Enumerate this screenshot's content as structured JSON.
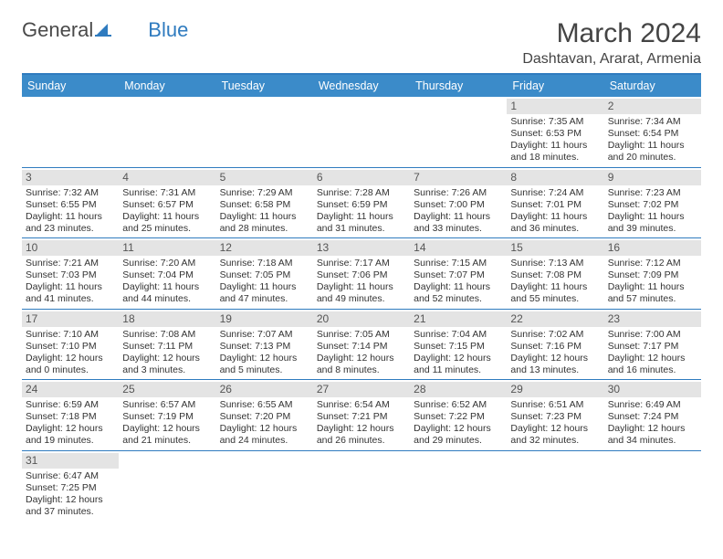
{
  "logo": {
    "text1": "General",
    "text2": "Blue",
    "accent_color": "#2f7bbf"
  },
  "title": "March 2024",
  "location": "Dashtavan, Ararat, Armenia",
  "weekdays": [
    "Sunday",
    "Monday",
    "Tuesday",
    "Wednesday",
    "Thursday",
    "Friday",
    "Saturday"
  ],
  "header_bg": "#3b8bc9",
  "daynum_bg": "#e4e4e4",
  "border_color": "#2f7bbf",
  "weeks": [
    [
      null,
      null,
      null,
      null,
      null,
      {
        "n": "1",
        "sr": "Sunrise: 7:35 AM",
        "ss": "Sunset: 6:53 PM",
        "dl": "Daylight: 11 hours and 18 minutes."
      },
      {
        "n": "2",
        "sr": "Sunrise: 7:34 AM",
        "ss": "Sunset: 6:54 PM",
        "dl": "Daylight: 11 hours and 20 minutes."
      }
    ],
    [
      {
        "n": "3",
        "sr": "Sunrise: 7:32 AM",
        "ss": "Sunset: 6:55 PM",
        "dl": "Daylight: 11 hours and 23 minutes."
      },
      {
        "n": "4",
        "sr": "Sunrise: 7:31 AM",
        "ss": "Sunset: 6:57 PM",
        "dl": "Daylight: 11 hours and 25 minutes."
      },
      {
        "n": "5",
        "sr": "Sunrise: 7:29 AM",
        "ss": "Sunset: 6:58 PM",
        "dl": "Daylight: 11 hours and 28 minutes."
      },
      {
        "n": "6",
        "sr": "Sunrise: 7:28 AM",
        "ss": "Sunset: 6:59 PM",
        "dl": "Daylight: 11 hours and 31 minutes."
      },
      {
        "n": "7",
        "sr": "Sunrise: 7:26 AM",
        "ss": "Sunset: 7:00 PM",
        "dl": "Daylight: 11 hours and 33 minutes."
      },
      {
        "n": "8",
        "sr": "Sunrise: 7:24 AM",
        "ss": "Sunset: 7:01 PM",
        "dl": "Daylight: 11 hours and 36 minutes."
      },
      {
        "n": "9",
        "sr": "Sunrise: 7:23 AM",
        "ss": "Sunset: 7:02 PM",
        "dl": "Daylight: 11 hours and 39 minutes."
      }
    ],
    [
      {
        "n": "10",
        "sr": "Sunrise: 7:21 AM",
        "ss": "Sunset: 7:03 PM",
        "dl": "Daylight: 11 hours and 41 minutes."
      },
      {
        "n": "11",
        "sr": "Sunrise: 7:20 AM",
        "ss": "Sunset: 7:04 PM",
        "dl": "Daylight: 11 hours and 44 minutes."
      },
      {
        "n": "12",
        "sr": "Sunrise: 7:18 AM",
        "ss": "Sunset: 7:05 PM",
        "dl": "Daylight: 11 hours and 47 minutes."
      },
      {
        "n": "13",
        "sr": "Sunrise: 7:17 AM",
        "ss": "Sunset: 7:06 PM",
        "dl": "Daylight: 11 hours and 49 minutes."
      },
      {
        "n": "14",
        "sr": "Sunrise: 7:15 AM",
        "ss": "Sunset: 7:07 PM",
        "dl": "Daylight: 11 hours and 52 minutes."
      },
      {
        "n": "15",
        "sr": "Sunrise: 7:13 AM",
        "ss": "Sunset: 7:08 PM",
        "dl": "Daylight: 11 hours and 55 minutes."
      },
      {
        "n": "16",
        "sr": "Sunrise: 7:12 AM",
        "ss": "Sunset: 7:09 PM",
        "dl": "Daylight: 11 hours and 57 minutes."
      }
    ],
    [
      {
        "n": "17",
        "sr": "Sunrise: 7:10 AM",
        "ss": "Sunset: 7:10 PM",
        "dl": "Daylight: 12 hours and 0 minutes."
      },
      {
        "n": "18",
        "sr": "Sunrise: 7:08 AM",
        "ss": "Sunset: 7:11 PM",
        "dl": "Daylight: 12 hours and 3 minutes."
      },
      {
        "n": "19",
        "sr": "Sunrise: 7:07 AM",
        "ss": "Sunset: 7:13 PM",
        "dl": "Daylight: 12 hours and 5 minutes."
      },
      {
        "n": "20",
        "sr": "Sunrise: 7:05 AM",
        "ss": "Sunset: 7:14 PM",
        "dl": "Daylight: 12 hours and 8 minutes."
      },
      {
        "n": "21",
        "sr": "Sunrise: 7:04 AM",
        "ss": "Sunset: 7:15 PM",
        "dl": "Daylight: 12 hours and 11 minutes."
      },
      {
        "n": "22",
        "sr": "Sunrise: 7:02 AM",
        "ss": "Sunset: 7:16 PM",
        "dl": "Daylight: 12 hours and 13 minutes."
      },
      {
        "n": "23",
        "sr": "Sunrise: 7:00 AM",
        "ss": "Sunset: 7:17 PM",
        "dl": "Daylight: 12 hours and 16 minutes."
      }
    ],
    [
      {
        "n": "24",
        "sr": "Sunrise: 6:59 AM",
        "ss": "Sunset: 7:18 PM",
        "dl": "Daylight: 12 hours and 19 minutes."
      },
      {
        "n": "25",
        "sr": "Sunrise: 6:57 AM",
        "ss": "Sunset: 7:19 PM",
        "dl": "Daylight: 12 hours and 21 minutes."
      },
      {
        "n": "26",
        "sr": "Sunrise: 6:55 AM",
        "ss": "Sunset: 7:20 PM",
        "dl": "Daylight: 12 hours and 24 minutes."
      },
      {
        "n": "27",
        "sr": "Sunrise: 6:54 AM",
        "ss": "Sunset: 7:21 PM",
        "dl": "Daylight: 12 hours and 26 minutes."
      },
      {
        "n": "28",
        "sr": "Sunrise: 6:52 AM",
        "ss": "Sunset: 7:22 PM",
        "dl": "Daylight: 12 hours and 29 minutes."
      },
      {
        "n": "29",
        "sr": "Sunrise: 6:51 AM",
        "ss": "Sunset: 7:23 PM",
        "dl": "Daylight: 12 hours and 32 minutes."
      },
      {
        "n": "30",
        "sr": "Sunrise: 6:49 AM",
        "ss": "Sunset: 7:24 PM",
        "dl": "Daylight: 12 hours and 34 minutes."
      }
    ],
    [
      {
        "n": "31",
        "sr": "Sunrise: 6:47 AM",
        "ss": "Sunset: 7:25 PM",
        "dl": "Daylight: 12 hours and 37 minutes."
      },
      null,
      null,
      null,
      null,
      null,
      null
    ]
  ]
}
